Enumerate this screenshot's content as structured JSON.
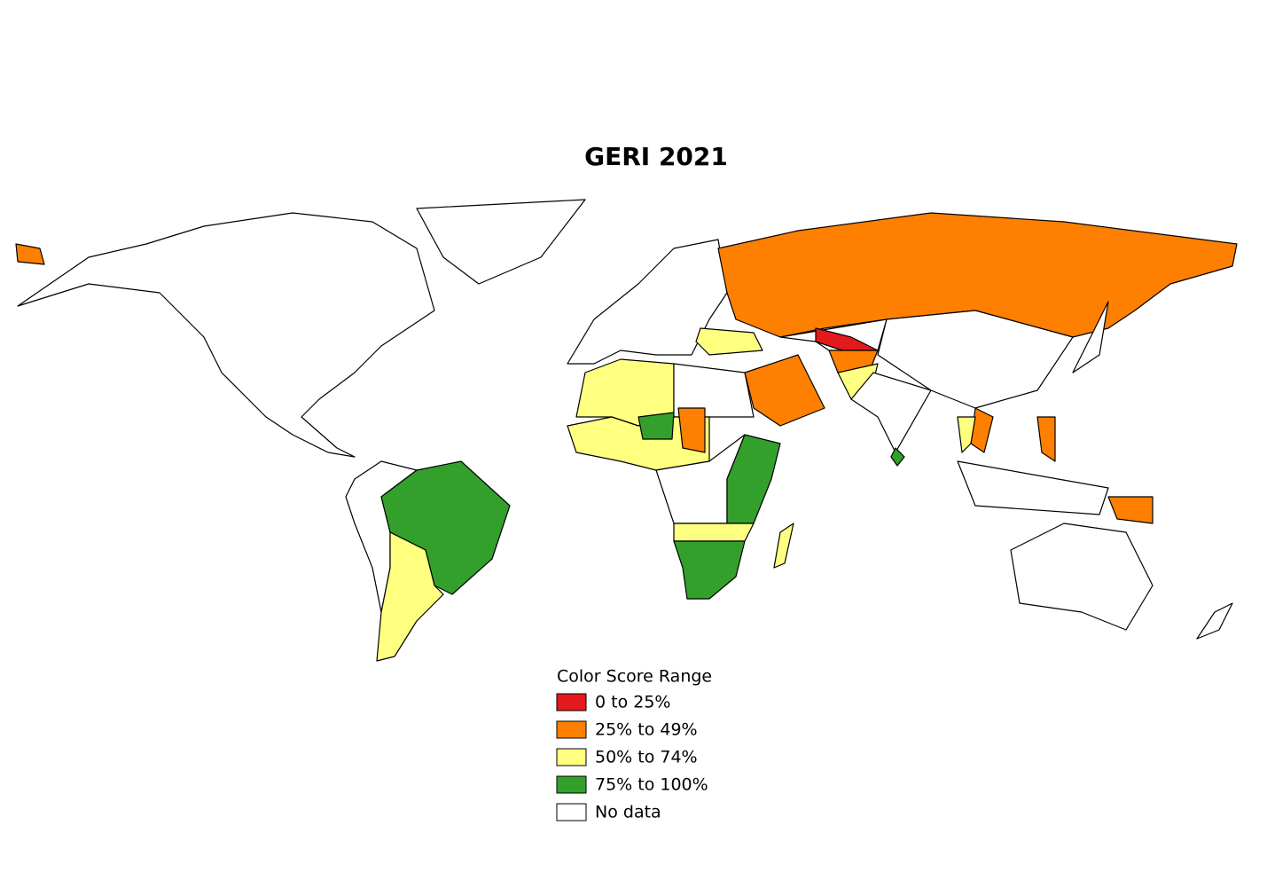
{
  "title": "GERI 2021",
  "legend": {
    "title": "Color Score Range",
    "items": [
      {
        "label": "0 to 25%",
        "color": "#e31a1c"
      },
      {
        "label": "25% to 49%",
        "color": "#ff7f00"
      },
      {
        "label": "50% to 74%",
        "color": "#ffff80"
      },
      {
        "label": "75% to 100%",
        "color": "#33a02c"
      },
      {
        "label": "No data",
        "color": "#ffffff"
      }
    ]
  }
}
